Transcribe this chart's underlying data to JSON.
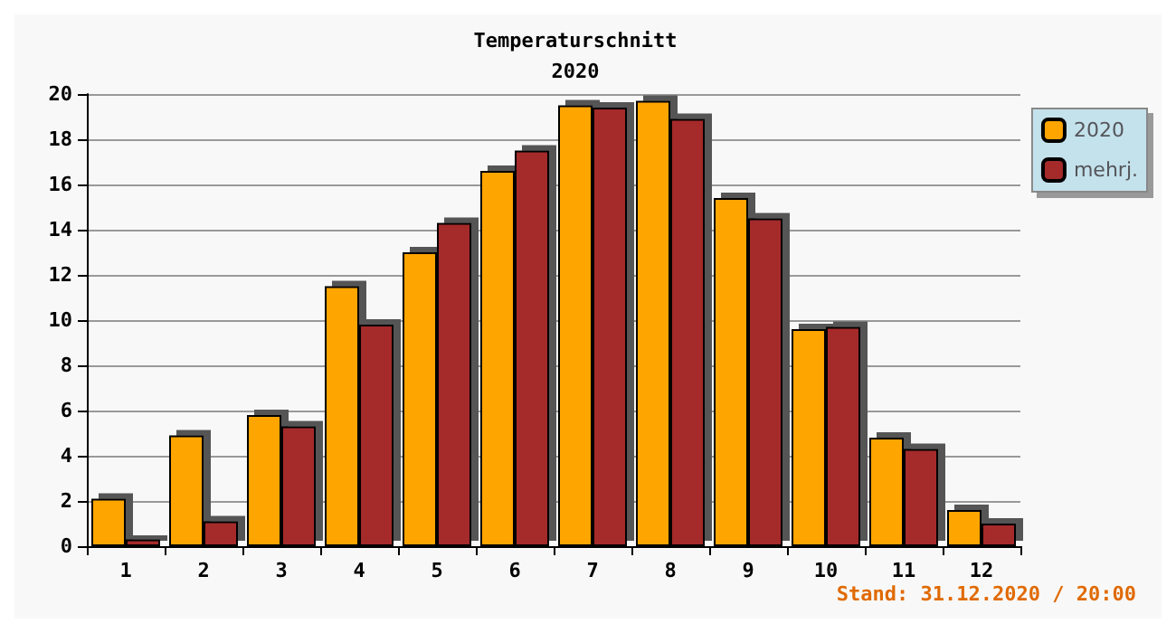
{
  "chart_data": {
    "type": "bar",
    "title": "Temperaturschnitt",
    "subtitle": "2020",
    "categories": [
      "1",
      "2",
      "3",
      "4",
      "5",
      "6",
      "7",
      "8",
      "9",
      "10",
      "11",
      "12"
    ],
    "series": [
      {
        "name": "2020",
        "color": "#ffa500",
        "values": [
          2.1,
          4.9,
          5.8,
          11.5,
          13.0,
          16.6,
          19.5,
          19.7,
          15.4,
          9.6,
          4.8,
          1.6
        ]
      },
      {
        "name": "mehrj.",
        "color": "#a52a2a",
        "values": [
          0.3,
          1.1,
          5.3,
          9.8,
          14.3,
          17.5,
          19.4,
          18.9,
          14.5,
          9.7,
          4.3,
          1.0
        ]
      }
    ],
    "ylim": [
      0,
      20
    ],
    "yticks": [
      0,
      2,
      4,
      6,
      8,
      10,
      12,
      14,
      16,
      18,
      20
    ],
    "grid": "y",
    "legend": "top right",
    "annotations": [
      "Stand: 31.12.2020 / 20:00"
    ]
  }
}
